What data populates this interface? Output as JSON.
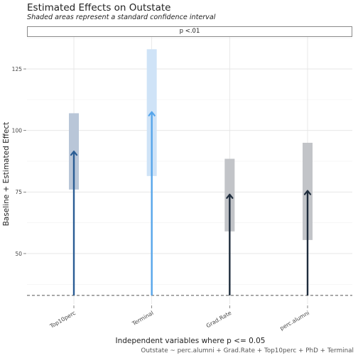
{
  "chart_data": {
    "type": "bar",
    "title": "Estimated Effects on Outstate",
    "subtitle": "Shaded areas represent a standard confidence interval",
    "facet_label": "p <.01",
    "xlabel": "Independent variables where p <= 0.05",
    "ylabel": "Baseline + Estimated Effect",
    "caption": "Outstate ~ perc.alumni + Grad.Rate + Top10perc + PhD + Terminal",
    "categories": [
      "Top10perc",
      "Terminal",
      "Grad.Rate",
      "perc.alumni"
    ],
    "baseline": 33,
    "series": [
      {
        "values": [
          91.5,
          107.5,
          74.0,
          75.5
        ],
        "ci_low": [
          76,
          81.5,
          59,
          55.5
        ],
        "ci_high": [
          107,
          133,
          88.5,
          95
        ],
        "colors": [
          "#2b5d94",
          "#56a5ea",
          "#1f2d3d",
          "#1f2d3d"
        ],
        "ci_colors": [
          "#b9c6d8",
          "#cfe3f7",
          "#c2c4c8",
          "#c2c4c8"
        ]
      }
    ],
    "yticks": [
      50,
      75,
      100,
      125
    ],
    "ylim": [
      29.5,
      138
    ],
    "grid": true,
    "dashed_baseline": true
  }
}
